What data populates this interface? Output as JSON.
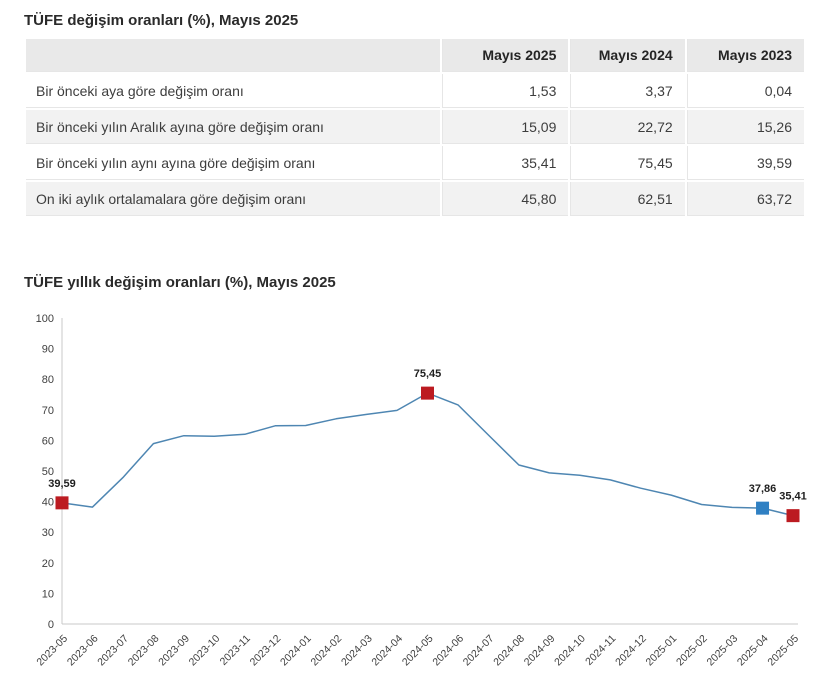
{
  "table_section": {
    "title": "TÜFE değişim oranları (%), Mayıs 2025",
    "columns": [
      "Mayıs 2025",
      "Mayıs 2024",
      "Mayıs 2023"
    ],
    "rows": [
      {
        "label": "Bir önceki aya göre değişim oranı",
        "values": [
          "1,53",
          "3,37",
          "0,04"
        ]
      },
      {
        "label": "Bir önceki yılın Aralık ayına göre değişim oranı",
        "values": [
          "15,09",
          "22,72",
          "15,26"
        ]
      },
      {
        "label": "Bir önceki yılın aynı ayına göre değişim oranı",
        "values": [
          "35,41",
          "75,45",
          "39,59"
        ]
      },
      {
        "label": "On iki aylık ortalamalara göre değişim oranı",
        "values": [
          "45,80",
          "62,51",
          "63,72"
        ]
      }
    ]
  },
  "chart_section": {
    "title": "TÜFE yıllık değişim oranları (%), Mayıs 2025"
  },
  "chart_data": [
    {
      "type": "table",
      "title": "TÜFE değişim oranları (%), Mayıs 2025",
      "columns": [
        "",
        "Mayıs 2025",
        "Mayıs 2024",
        "Mayıs 2023"
      ],
      "rows": [
        [
          "Bir önceki aya göre değişim oranı",
          1.53,
          3.37,
          0.04
        ],
        [
          "Bir önceki yılın Aralık ayına göre değişim oranı",
          15.09,
          22.72,
          15.26
        ],
        [
          "Bir önceki yılın aynı ayına göre değişim oranı",
          35.41,
          75.45,
          39.59
        ],
        [
          "On iki aylık ortalamalara göre değişim oranı",
          45.8,
          62.51,
          63.72
        ]
      ]
    },
    {
      "type": "line",
      "title": "TÜFE yıllık değişim oranları (%), Mayıs 2025",
      "x": [
        "2023-05",
        "2023-06",
        "2023-07",
        "2023-08",
        "2023-09",
        "2023-10",
        "2023-11",
        "2023-12",
        "2024-01",
        "2024-02",
        "2024-03",
        "2024-04",
        "2024-05",
        "2024-06",
        "2024-07",
        "2024-08",
        "2024-09",
        "2024-10",
        "2024-11",
        "2024-12",
        "2025-01",
        "2025-02",
        "2025-03",
        "2025-04",
        "2025-05"
      ],
      "values": [
        39.59,
        38.21,
        47.83,
        58.94,
        61.53,
        61.36,
        61.98,
        64.77,
        64.86,
        67.07,
        68.5,
        69.8,
        75.45,
        71.6,
        61.78,
        51.97,
        49.38,
        48.58,
        47.09,
        44.38,
        42.12,
        39.05,
        38.1,
        37.86,
        35.41
      ],
      "ylim": [
        0,
        100
      ],
      "ytick_step": 10,
      "grid": false,
      "legend": "none",
      "line_color": "#4e86b2",
      "axis_color": "#c9c9c9",
      "annotations": [
        {
          "x": "2023-05",
          "label": "39,59",
          "marker_color": "#bc1b21"
        },
        {
          "x": "2024-05",
          "label": "75,45",
          "marker_color": "#bc1b21"
        },
        {
          "x": "2025-04",
          "label": "37,86",
          "marker_color": "#2f80c3"
        },
        {
          "x": "2025-05",
          "label": "35,41",
          "marker_color": "#bc1b21"
        }
      ]
    }
  ]
}
